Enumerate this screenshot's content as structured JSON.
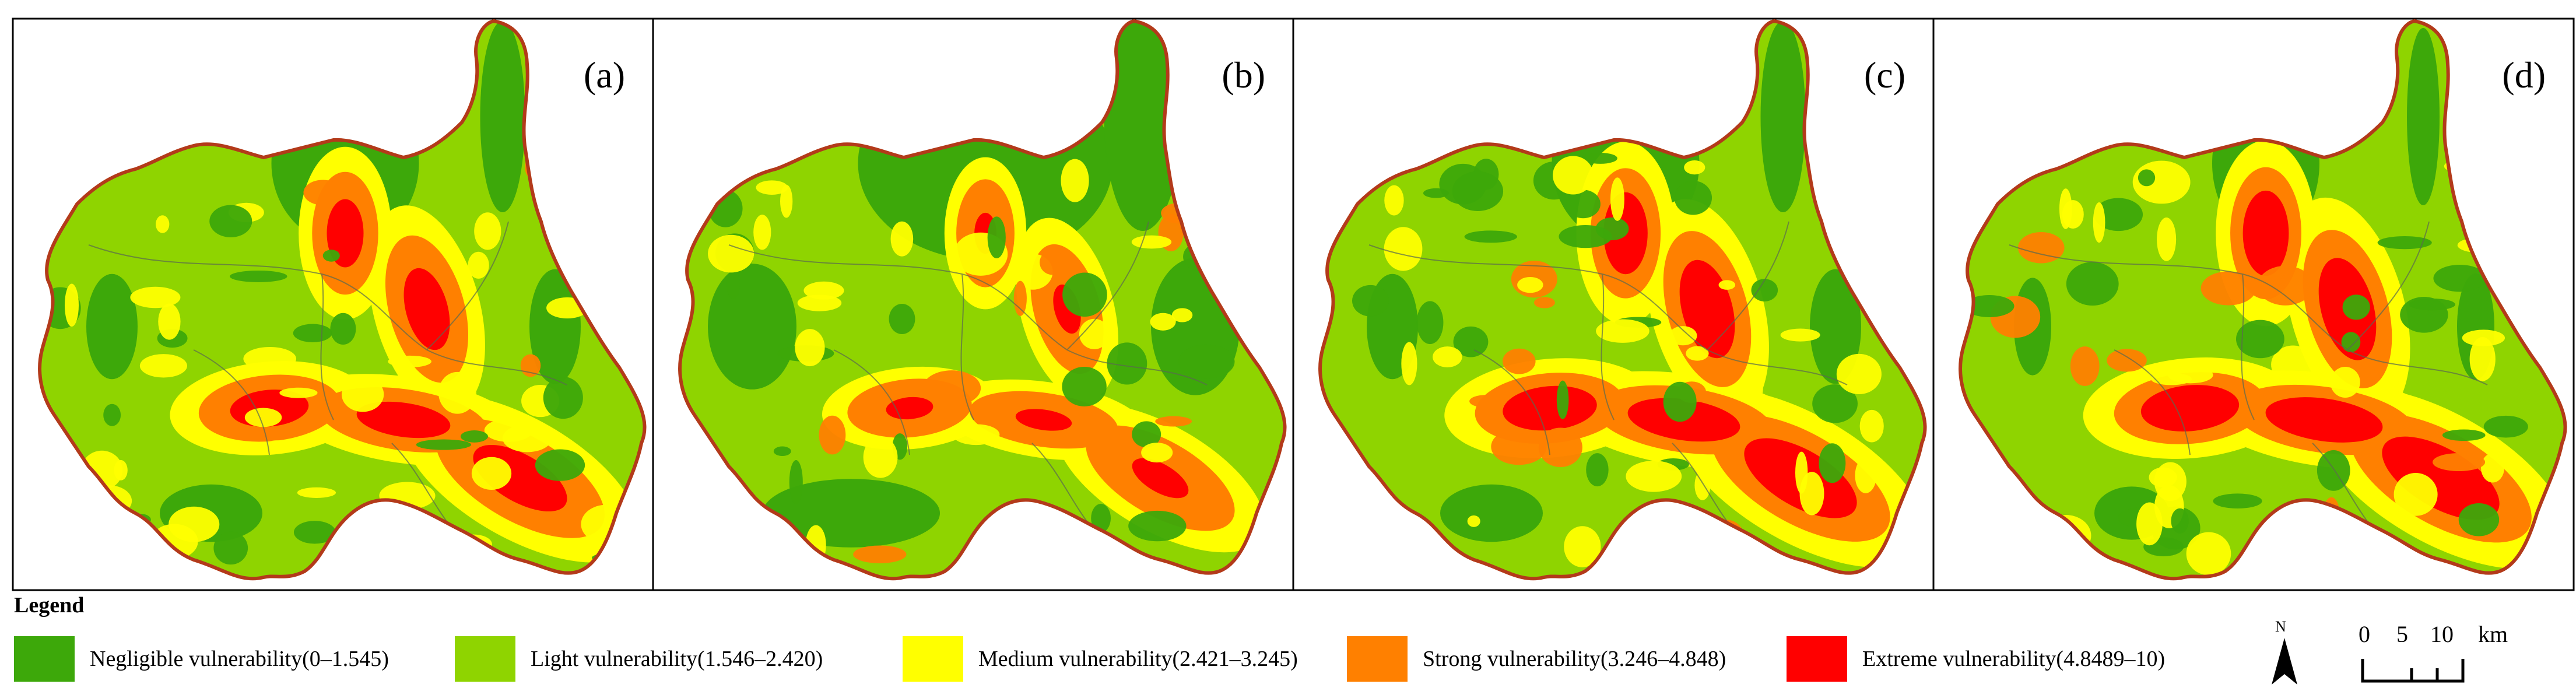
{
  "panels": [
    {
      "id": "a",
      "label": "(a)",
      "hot": 1.0,
      "green": 0.55
    },
    {
      "id": "b",
      "label": "(b)",
      "hot": 0.6,
      "green": 0.95
    },
    {
      "id": "c",
      "label": "(c)",
      "hot": 1.2,
      "green": 0.55
    },
    {
      "id": "d",
      "label": "(d)",
      "hot": 1.25,
      "green": 0.4
    }
  ],
  "legend": {
    "title": "Legend",
    "items": [
      {
        "label": "Negligible vulnerability(0–1.545)",
        "color": "#3da80a"
      },
      {
        "label": "Light vulnerability(1.546–2.420)",
        "color": "#8fd400"
      },
      {
        "label": "Medium vulnerability(2.421–3.245)",
        "color": "#ffff00"
      },
      {
        "label": "Strong vulnerability(3.246–4.848)",
        "color": "#ff8000"
      },
      {
        "label": "Extreme vulnerability(4.8489–10)",
        "color": "#ff0000"
      }
    ]
  },
  "north_arrow": {
    "label": "N"
  },
  "scale_bar": {
    "ticks": [
      "0",
      "5",
      "10"
    ],
    "unit": "km"
  },
  "colors": {
    "boundary": "#b33a1a",
    "frame": "#000000",
    "district_lines": "#5a6a50"
  }
}
